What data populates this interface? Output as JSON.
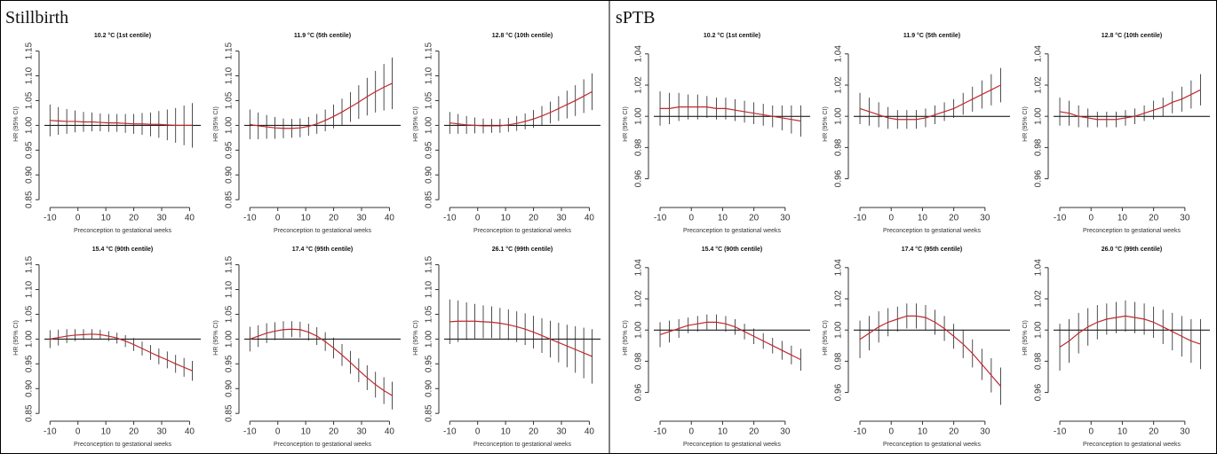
{
  "panels": [
    {
      "title": "Stillbirth"
    },
    {
      "title": "sPTB"
    }
  ],
  "chart_data": [
    {
      "type": "line",
      "title": "10.2 °C (1st centile)",
      "xlabel": "Preconception to gestational weeks",
      "ylabel": "HR (95% CI)",
      "x": [
        -10,
        -7,
        -4,
        -1,
        2,
        5,
        8,
        11,
        14,
        17,
        20,
        23,
        26,
        29,
        32,
        35,
        38,
        41
      ],
      "series": [
        {
          "color": "#c0282d",
          "values": [
            1.01,
            1.009,
            1.008,
            1.008,
            1.007,
            1.007,
            1.006,
            1.005,
            1.005,
            1.004,
            1.003,
            1.003,
            1.002,
            1.002,
            1.001,
            1.0,
            1.0,
            1.0
          ],
          "errors": [
            0.032,
            0.028,
            0.025,
            0.022,
            0.02,
            0.019,
            0.018,
            0.018,
            0.018,
            0.019,
            0.02,
            0.022,
            0.024,
            0.027,
            0.031,
            0.035,
            0.04,
            0.045
          ]
        }
      ],
      "error_color": "#222222",
      "hline": 1,
      "xlim": [
        -12,
        44
      ],
      "ylim": [
        0.845,
        1.16
      ],
      "xticks": [
        -10,
        0,
        10,
        20,
        30,
        40
      ],
      "yticks": [
        0.85,
        {
          "value": 0.9,
          "label": "0.90"
        },
        0.95,
        {
          "value": 1,
          "label": "1.00"
        },
        1.05,
        {
          "value": 1.1,
          "label": "1.10"
        },
        1.15
      ]
    },
    {
      "type": "line",
      "title": "11.9 °C (5th centile)",
      "xlabel": "Preconception to gestational weeks",
      "ylabel": "HR (95% CI)",
      "x": [
        -10,
        -7,
        -4,
        -1,
        2,
        5,
        8,
        11,
        14,
        17,
        20,
        23,
        26,
        29,
        32,
        35,
        38,
        41
      ],
      "series": [
        {
          "color": "#c0282d",
          "values": [
            1.002,
            0.999,
            0.997,
            0.995,
            0.994,
            0.994,
            0.995,
            0.998,
            1.003,
            1.01,
            1.018,
            1.027,
            1.037,
            1.047,
            1.058,
            1.068,
            1.077,
            1.085
          ],
          "errors": [
            0.03,
            0.027,
            0.024,
            0.022,
            0.02,
            0.019,
            0.019,
            0.019,
            0.02,
            0.022,
            0.024,
            0.027,
            0.03,
            0.034,
            0.038,
            0.042,
            0.047,
            0.052
          ]
        }
      ],
      "error_color": "#222222",
      "hline": 1,
      "xlim": [
        -12,
        44
      ],
      "ylim": [
        0.845,
        1.16
      ],
      "xticks": [
        -10,
        0,
        10,
        20,
        30,
        40
      ],
      "yticks": [
        0.85,
        {
          "value": 0.9,
          "label": "0.90"
        },
        0.95,
        {
          "value": 1,
          "label": "1.00"
        },
        1.05,
        {
          "value": 1.1,
          "label": "1.10"
        },
        1.15
      ]
    },
    {
      "type": "line",
      "title": "12.8 °C (10th centile)",
      "xlabel": "Preconception to gestational weeks",
      "ylabel": "HR (95% CI)",
      "x": [
        -10,
        -7,
        -4,
        -1,
        2,
        5,
        8,
        11,
        14,
        17,
        20,
        23,
        26,
        29,
        32,
        35,
        38,
        41
      ],
      "series": [
        {
          "color": "#c0282d",
          "values": [
            1.005,
            1.003,
            1.001,
            1.0,
            0.999,
            0.999,
            0.999,
            1.001,
            1.004,
            1.008,
            1.013,
            1.019,
            1.026,
            1.034,
            1.042,
            1.05,
            1.059,
            1.068
          ],
          "errors": [
            0.022,
            0.02,
            0.018,
            0.016,
            0.015,
            0.014,
            0.014,
            0.014,
            0.015,
            0.016,
            0.018,
            0.02,
            0.022,
            0.025,
            0.028,
            0.031,
            0.034,
            0.037
          ]
        }
      ],
      "error_color": "#222222",
      "hline": 1,
      "xlim": [
        -12,
        44
      ],
      "ylim": [
        0.845,
        1.16
      ],
      "xticks": [
        -10,
        0,
        10,
        20,
        30,
        40
      ],
      "yticks": [
        0.85,
        {
          "value": 0.9,
          "label": "0.90"
        },
        0.95,
        {
          "value": 1,
          "label": "1.00"
        },
        1.05,
        {
          "value": 1.1,
          "label": "1.10"
        },
        1.15
      ]
    },
    {
      "type": "line",
      "title": "15.4 °C (90th centile)",
      "xlabel": "Preconception to gestational weeks",
      "ylabel": "HR (95% CI)",
      "x": [
        -10,
        -7,
        -4,
        -1,
        2,
        5,
        8,
        11,
        14,
        17,
        20,
        23,
        26,
        29,
        32,
        35,
        38,
        41
      ],
      "series": [
        {
          "color": "#c0282d",
          "values": [
            1.0,
            1.003,
            1.006,
            1.008,
            1.009,
            1.01,
            1.009,
            1.006,
            1.002,
            0.996,
            0.989,
            0.981,
            0.973,
            0.965,
            0.958,
            0.95,
            0.943,
            0.936
          ],
          "errors": [
            0.018,
            0.016,
            0.014,
            0.012,
            0.011,
            0.01,
            0.01,
            0.01,
            0.011,
            0.012,
            0.013,
            0.014,
            0.015,
            0.016,
            0.017,
            0.018,
            0.019,
            0.02
          ]
        }
      ],
      "error_color": "#222222",
      "hline": 1,
      "xlim": [
        -12,
        44
      ],
      "ylim": [
        0.845,
        1.16
      ],
      "xticks": [
        -10,
        0,
        10,
        20,
        30,
        40
      ],
      "yticks": [
        0.85,
        {
          "value": 0.9,
          "label": "0.90"
        },
        0.95,
        {
          "value": 1,
          "label": "1.00"
        },
        1.05,
        {
          "value": 1.1,
          "label": "1.10"
        },
        1.15
      ]
    },
    {
      "type": "line",
      "title": "17.4 °C (95th centile)",
      "xlabel": "Preconception to gestational weeks",
      "ylabel": "HR (95% CI)",
      "x": [
        -10,
        -7,
        -4,
        -1,
        2,
        5,
        8,
        11,
        14,
        17,
        20,
        23,
        26,
        29,
        32,
        35,
        38,
        41
      ],
      "series": [
        {
          "color": "#c0282d",
          "values": [
            1.0,
            1.006,
            1.012,
            1.016,
            1.019,
            1.02,
            1.019,
            1.014,
            1.006,
            0.995,
            0.982,
            0.968,
            0.953,
            0.937,
            0.922,
            0.908,
            0.896,
            0.886
          ],
          "errors": [
            0.025,
            0.022,
            0.02,
            0.018,
            0.017,
            0.016,
            0.016,
            0.017,
            0.018,
            0.019,
            0.021,
            0.022,
            0.023,
            0.024,
            0.025,
            0.026,
            0.027,
            0.028
          ]
        }
      ],
      "error_color": "#222222",
      "hline": 1,
      "xlim": [
        -12,
        44
      ],
      "ylim": [
        0.845,
        1.16
      ],
      "xticks": [
        -10,
        0,
        10,
        20,
        30,
        40
      ],
      "yticks": [
        0.85,
        {
          "value": 0.9,
          "label": "0.90"
        },
        0.95,
        {
          "value": 1,
          "label": "1.00"
        },
        1.05,
        {
          "value": 1.1,
          "label": "1.10"
        },
        1.15
      ]
    },
    {
      "type": "line",
      "title": "26.1 °C (99th centile)",
      "xlabel": "Preconception to gestational weeks",
      "ylabel": "HR (95% CI)",
      "x": [
        -10,
        -7,
        -4,
        -1,
        2,
        5,
        8,
        11,
        14,
        17,
        20,
        23,
        26,
        29,
        32,
        35,
        38,
        41
      ],
      "series": [
        {
          "color": "#c0282d",
          "values": [
            1.035,
            1.036,
            1.036,
            1.036,
            1.035,
            1.034,
            1.032,
            1.029,
            1.025,
            1.02,
            1.014,
            1.007,
            1.0,
            0.993,
            0.986,
            0.979,
            0.972,
            0.965
          ],
          "errors": [
            0.045,
            0.042,
            0.038,
            0.035,
            0.033,
            0.032,
            0.031,
            0.031,
            0.031,
            0.032,
            0.033,
            0.035,
            0.037,
            0.04,
            0.043,
            0.047,
            0.051,
            0.055
          ]
        }
      ],
      "error_color": "#222222",
      "hline": 1,
      "xlim": [
        -12,
        44
      ],
      "ylim": [
        0.845,
        1.16
      ],
      "xticks": [
        -10,
        0,
        10,
        20,
        30,
        40
      ],
      "yticks": [
        0.85,
        {
          "value": 0.9,
          "label": "0.90"
        },
        0.95,
        {
          "value": 1,
          "label": "1.00"
        },
        1.05,
        {
          "value": 1.1,
          "label": "1.10"
        },
        1.15
      ]
    },
    {
      "type": "line",
      "title": "10.2 °C (1st centile)",
      "xlabel": "Preconception to gestational weeks",
      "ylabel": "HR (95% CI)",
      "x": [
        -10,
        -7,
        -4,
        -1,
        2,
        5,
        8,
        11,
        14,
        17,
        20,
        23,
        26,
        29,
        32,
        35
      ],
      "series": [
        {
          "color": "#c0282d",
          "values": [
            1.005,
            1.005,
            1.006,
            1.006,
            1.006,
            1.006,
            1.005,
            1.005,
            1.004,
            1.003,
            1.002,
            1.001,
            1.0,
            0.999,
            0.998,
            0.997
          ],
          "errors": [
            0.011,
            0.01,
            0.009,
            0.008,
            0.008,
            0.007,
            0.007,
            0.007,
            0.007,
            0.007,
            0.007,
            0.007,
            0.007,
            0.008,
            0.009,
            0.01
          ]
        }
      ],
      "error_color": "#222222",
      "hline": 1,
      "xlim": [
        -12,
        38
      ],
      "ylim": [
        0.945,
        1.045
      ],
      "xticks": [
        -10,
        0,
        10,
        20,
        30
      ],
      "yticks": [
        0.96,
        0.98,
        {
          "value": 1,
          "label": "1.00"
        },
        1.02,
        1.04
      ]
    },
    {
      "type": "line",
      "title": "11.9 °C (5th centile)",
      "xlabel": "Preconception to gestational weeks",
      "ylabel": "HR (95% CI)",
      "x": [
        -10,
        -7,
        -4,
        -1,
        2,
        5,
        8,
        11,
        14,
        17,
        20,
        23,
        26,
        29,
        32,
        35
      ],
      "series": [
        {
          "color": "#c0282d",
          "values": [
            1.005,
            1.003,
            1.001,
            0.999,
            0.998,
            0.998,
            0.998,
            0.999,
            1.001,
            1.003,
            1.005,
            1.008,
            1.011,
            1.014,
            1.017,
            1.02
          ],
          "errors": [
            0.01,
            0.009,
            0.008,
            0.007,
            0.006,
            0.006,
            0.006,
            0.006,
            0.006,
            0.006,
            0.006,
            0.007,
            0.008,
            0.009,
            0.01,
            0.011
          ]
        }
      ],
      "error_color": "#222222",
      "hline": 1,
      "xlim": [
        -12,
        38
      ],
      "ylim": [
        0.945,
        1.045
      ],
      "xticks": [
        -10,
        0,
        10,
        20,
        30
      ],
      "yticks": [
        0.96,
        0.98,
        {
          "value": 1,
          "label": "1.00"
        },
        1.02,
        1.04
      ]
    },
    {
      "type": "line",
      "title": "12.8 °C (10th centile)",
      "xlabel": "Preconception to gestational weeks",
      "ylabel": "HR (95% CI)",
      "x": [
        -10,
        -7,
        -4,
        -1,
        2,
        5,
        8,
        11,
        14,
        17,
        20,
        23,
        26,
        29,
        32,
        35
      ],
      "series": [
        {
          "color": "#c0282d",
          "values": [
            1.003,
            1.002,
            1.0,
            0.999,
            0.998,
            0.998,
            0.998,
            0.999,
            1.0,
            1.002,
            1.004,
            1.006,
            1.009,
            1.011,
            1.014,
            1.017
          ],
          "errors": [
            0.009,
            0.008,
            0.007,
            0.006,
            0.005,
            0.005,
            0.005,
            0.005,
            0.005,
            0.005,
            0.006,
            0.006,
            0.007,
            0.008,
            0.009,
            0.01
          ]
        }
      ],
      "error_color": "#222222",
      "hline": 1,
      "xlim": [
        -12,
        38
      ],
      "ylim": [
        0.945,
        1.045
      ],
      "xticks": [
        -10,
        0,
        10,
        20,
        30
      ],
      "yticks": [
        0.96,
        0.98,
        {
          "value": 1,
          "label": "1.00"
        },
        1.02,
        1.04
      ]
    },
    {
      "type": "line",
      "title": "15.4 °C (90th centile)",
      "xlabel": "Preconception to gestational weeks",
      "ylabel": "HR (95% CI)",
      "x": [
        -10,
        -7,
        -4,
        -1,
        2,
        5,
        8,
        11,
        14,
        17,
        20,
        23,
        26,
        29,
        32,
        35
      ],
      "series": [
        {
          "color": "#c0282d",
          "values": [
            0.997,
            0.999,
            1.001,
            1.003,
            1.004,
            1.005,
            1.005,
            1.004,
            1.002,
            0.999,
            0.996,
            0.993,
            0.99,
            0.987,
            0.984,
            0.981
          ],
          "errors": [
            0.008,
            0.007,
            0.006,
            0.005,
            0.005,
            0.005,
            0.005,
            0.005,
            0.005,
            0.005,
            0.005,
            0.005,
            0.005,
            0.006,
            0.006,
            0.007
          ]
        }
      ],
      "error_color": "#222222",
      "hline": 1,
      "xlim": [
        -12,
        38
      ],
      "ylim": [
        0.945,
        1.045
      ],
      "xticks": [
        -10,
        0,
        10,
        20,
        30
      ],
      "yticks": [
        0.96,
        0.98,
        {
          "value": 1,
          "label": "1.00"
        },
        1.02,
        1.04
      ]
    },
    {
      "type": "line",
      "title": "17.4 °C (95th centile)",
      "xlabel": "Preconception to gestational weeks",
      "ylabel": "HR (95% CI)",
      "x": [
        -10,
        -7,
        -4,
        -1,
        2,
        5,
        8,
        11,
        14,
        17,
        20,
        23,
        26,
        29,
        32,
        35
      ],
      "series": [
        {
          "color": "#c0282d",
          "values": [
            0.994,
            0.998,
            1.002,
            1.005,
            1.007,
            1.009,
            1.009,
            1.008,
            1.005,
            1.001,
            0.996,
            0.991,
            0.985,
            0.978,
            0.971,
            0.964
          ],
          "errors": [
            0.012,
            0.011,
            0.01,
            0.009,
            0.008,
            0.008,
            0.008,
            0.008,
            0.008,
            0.008,
            0.008,
            0.009,
            0.009,
            0.01,
            0.011,
            0.012
          ]
        }
      ],
      "error_color": "#222222",
      "hline": 1,
      "xlim": [
        -12,
        38
      ],
      "ylim": [
        0.945,
        1.045
      ],
      "xticks": [
        -10,
        0,
        10,
        20,
        30
      ],
      "yticks": [
        0.96,
        0.98,
        {
          "value": 1,
          "label": "1.00"
        },
        1.02,
        1.04
      ]
    },
    {
      "type": "line",
      "title": "26.0 °C (99th centile)",
      "xlabel": "Preconception to gestational weeks",
      "ylabel": "HR (95% CI)",
      "x": [
        -10,
        -7,
        -4,
        -1,
        2,
        5,
        8,
        11,
        14,
        17,
        20,
        23,
        26,
        29,
        32,
        35
      ],
      "series": [
        {
          "color": "#c0282d",
          "values": [
            0.989,
            0.993,
            0.998,
            1.002,
            1.005,
            1.007,
            1.008,
            1.009,
            1.008,
            1.007,
            1.005,
            1.002,
            0.999,
            0.996,
            0.993,
            0.991
          ],
          "errors": [
            0.015,
            0.014,
            0.013,
            0.012,
            0.011,
            0.01,
            0.01,
            0.01,
            0.01,
            0.01,
            0.01,
            0.011,
            0.012,
            0.013,
            0.014,
            0.016
          ]
        }
      ],
      "error_color": "#222222",
      "hline": 1,
      "xlim": [
        -12,
        38
      ],
      "ylim": [
        0.945,
        1.045
      ],
      "xticks": [
        -10,
        0,
        10,
        20,
        30
      ],
      "yticks": [
        0.96,
        0.98,
        {
          "value": 1,
          "label": "1.00"
        },
        1.02,
        1.04
      ]
    }
  ]
}
